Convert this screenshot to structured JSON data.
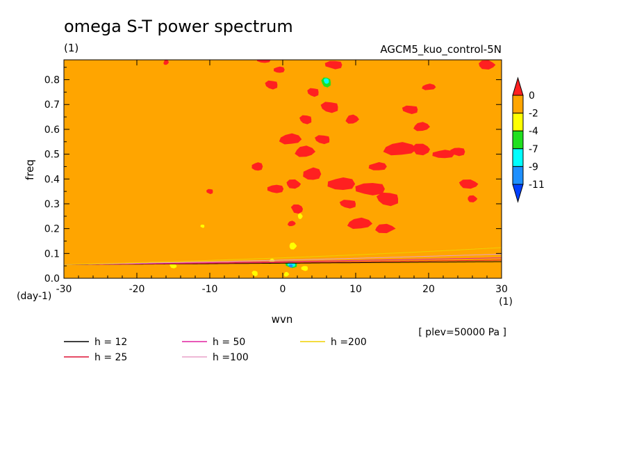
{
  "chart_data": {
    "type": "heatmap",
    "title": "omega S-T power spectrum",
    "units": "(1)",
    "run_label": "AGCM5_kuo_control-5N",
    "xlabel": "wvn",
    "ylabel": "freq",
    "y_units": "(day-1)",
    "x_units": "(1)",
    "level_note": "[ plev=50000 Pa ]",
    "xlim": [
      -30,
      30
    ],
    "ylim": [
      0,
      0.88
    ],
    "x_ticks": [
      -30,
      -20,
      -10,
      0,
      10,
      20,
      30
    ],
    "x_tick_labels": [
      "-30",
      "-20",
      "-10",
      "0",
      "10",
      "20",
      "30"
    ],
    "y_ticks": [
      0.0,
      0.1,
      0.2,
      0.3,
      0.4,
      0.5,
      0.6,
      0.7,
      0.8
    ],
    "y_tick_labels": [
      "0.0",
      "0.1",
      "0.2",
      "0.3",
      "0.4",
      "0.5",
      "0.6",
      "0.7",
      "0.8"
    ],
    "background_level": "-2 to 0",
    "background_color": "#ffa500",
    "colorbar": {
      "labels": [
        "0",
        "-2",
        "-4",
        "-7",
        "-9",
        "-11"
      ],
      "colors": [
        "#ff2020",
        "#ffa500",
        "#ffff00",
        "#20e020",
        "#00ffff",
        "#1e90ff",
        "#0040ff"
      ]
    },
    "dispersion_curves": [
      {
        "name": "h = 12",
        "label": "h = 12",
        "h": 12,
        "color": "#000000"
      },
      {
        "name": "h = 25",
        "label": "h = 25",
        "h": 25,
        "color": "#dd1133"
      },
      {
        "name": "h = 50",
        "label": "h = 50",
        "h": 50,
        "color": "#e020a0"
      },
      {
        "name": "h =100",
        "label": "h =100",
        "h": 100,
        "color": "#e8a0c8"
      },
      {
        "name": "h =200",
        "label": "h =200",
        "h": 200,
        "color": "#f0d000"
      }
    ],
    "red_patches": [
      [
        1,
        0.56,
        1.6,
        0.025
      ],
      [
        1.5,
        0.38,
        1.2,
        0.02
      ],
      [
        3,
        0.51,
        1.5,
        0.025
      ],
      [
        4,
        0.42,
        1.3,
        0.03
      ],
      [
        -1,
        0.36,
        1.2,
        0.02
      ],
      [
        2,
        0.28,
        1,
        0.02
      ],
      [
        -0.5,
        0.84,
        0.8,
        0.015
      ],
      [
        3.2,
        0.64,
        1,
        0.02
      ],
      [
        8,
        0.38,
        2,
        0.03
      ],
      [
        12,
        0.36,
        2.2,
        0.03
      ],
      [
        14.5,
        0.32,
        1.8,
        0.03
      ],
      [
        9,
        0.3,
        1.3,
        0.02
      ],
      [
        10.5,
        0.22,
        1.8,
        0.025
      ],
      [
        14,
        0.2,
        1.6,
        0.02
      ],
      [
        16,
        0.52,
        2.4,
        0.03
      ],
      [
        19,
        0.52,
        1.5,
        0.025
      ],
      [
        22,
        0.5,
        1.6,
        0.02
      ],
      [
        24,
        0.51,
        1.1,
        0.02
      ],
      [
        19,
        0.61,
        1.2,
        0.02
      ],
      [
        13,
        0.45,
        1.3,
        0.02
      ],
      [
        9.5,
        0.64,
        1,
        0.02
      ],
      [
        5.5,
        0.56,
        1.2,
        0.02
      ],
      [
        25.5,
        0.38,
        1.6,
        0.02
      ],
      [
        28,
        0.86,
        1.4,
        0.02
      ],
      [
        20,
        0.77,
        1,
        0.015
      ],
      [
        17.5,
        0.68,
        1.2,
        0.02
      ],
      [
        6.5,
        0.69,
        1.4,
        0.025
      ],
      [
        -1.5,
        0.78,
        1,
        0.02
      ],
      [
        -3.5,
        0.45,
        0.8,
        0.02
      ],
      [
        4.2,
        0.75,
        0.9,
        0.02
      ],
      [
        7,
        0.86,
        1.3,
        0.02
      ],
      [
        -2.6,
        0.88,
        1,
        0.015
      ],
      [
        -16,
        0.87,
        0.4,
        0.012
      ],
      [
        -10,
        0.35,
        0.5,
        0.012
      ],
      [
        1.2,
        0.22,
        0.6,
        0.012
      ],
      [
        26,
        0.32,
        0.8,
        0.015
      ]
    ],
    "yellow_patches": [
      [
        1.4,
        0.13,
        0.6,
        0.015
      ],
      [
        2.4,
        0.25,
        0.4,
        0.012
      ],
      [
        -3.8,
        0.02,
        0.5,
        0.012
      ],
      [
        -1.5,
        0.07,
        0.4,
        0.01
      ],
      [
        3,
        0.04,
        0.5,
        0.012
      ],
      [
        -15,
        0.05,
        0.6,
        0.01
      ],
      [
        -11,
        0.21,
        0.3,
        0.008
      ],
      [
        0.5,
        0.016,
        0.4,
        0.01
      ]
    ],
    "green_patches": [
      [
        6,
        0.79,
        0.8,
        0.022
      ],
      [
        1.2,
        0.055,
        0.9,
        0.015
      ]
    ],
    "cyan_patches": [
      [
        6,
        0.795,
        0.45,
        0.012
      ],
      [
        1.2,
        0.055,
        0.6,
        0.01
      ]
    ],
    "blue_patches": [
      [
        1.1,
        0.05,
        0.3,
        0.008
      ]
    ]
  }
}
